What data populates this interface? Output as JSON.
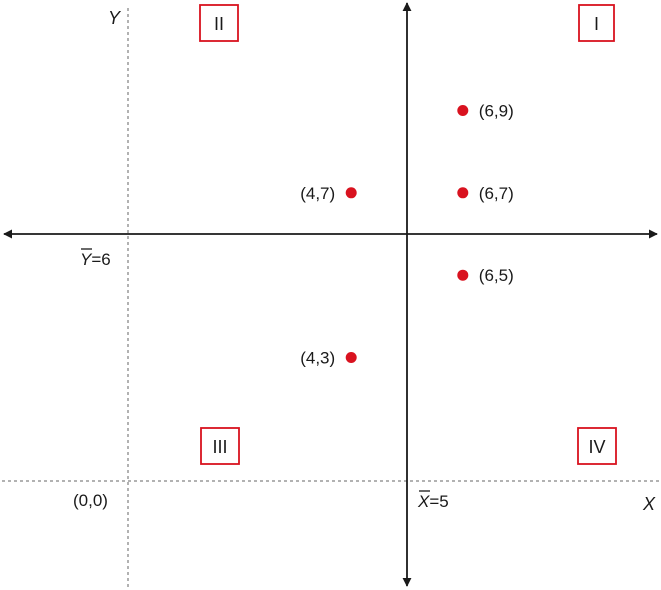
{
  "chart_data": {
    "type": "scatter",
    "title": "",
    "xlabel": "X",
    "ylabel": "Y",
    "xlim": [
      0,
      10
    ],
    "ylim": [
      0,
      10.5
    ],
    "origin_label": "(0,0)",
    "mean_x": {
      "value": 5,
      "symbol": "X",
      "suffix": "=5"
    },
    "mean_y": {
      "value": 6,
      "symbol": "Y",
      "suffix": "=6"
    },
    "points": [
      {
        "x": 6,
        "y": 9,
        "label": "(6,9)"
      },
      {
        "x": 4,
        "y": 7,
        "label": "(4,7)"
      },
      {
        "x": 6,
        "y": 7,
        "label": "(6,7)"
      },
      {
        "x": 6,
        "y": 5,
        "label": "(6,5)"
      },
      {
        "x": 4,
        "y": 3,
        "label": "(4,3)"
      }
    ],
    "quadrants": [
      {
        "label": "I",
        "position": "top-right"
      },
      {
        "label": "II",
        "position": "top-left"
      },
      {
        "label": "III",
        "position": "bottom-left"
      },
      {
        "label": "IV",
        "position": "bottom-right"
      }
    ],
    "grid": false,
    "colors": {
      "points": "#d9121f",
      "quadrant_box": "#d9121f",
      "axes": "#1a1a1a",
      "dotted_axes": "#999999"
    }
  }
}
